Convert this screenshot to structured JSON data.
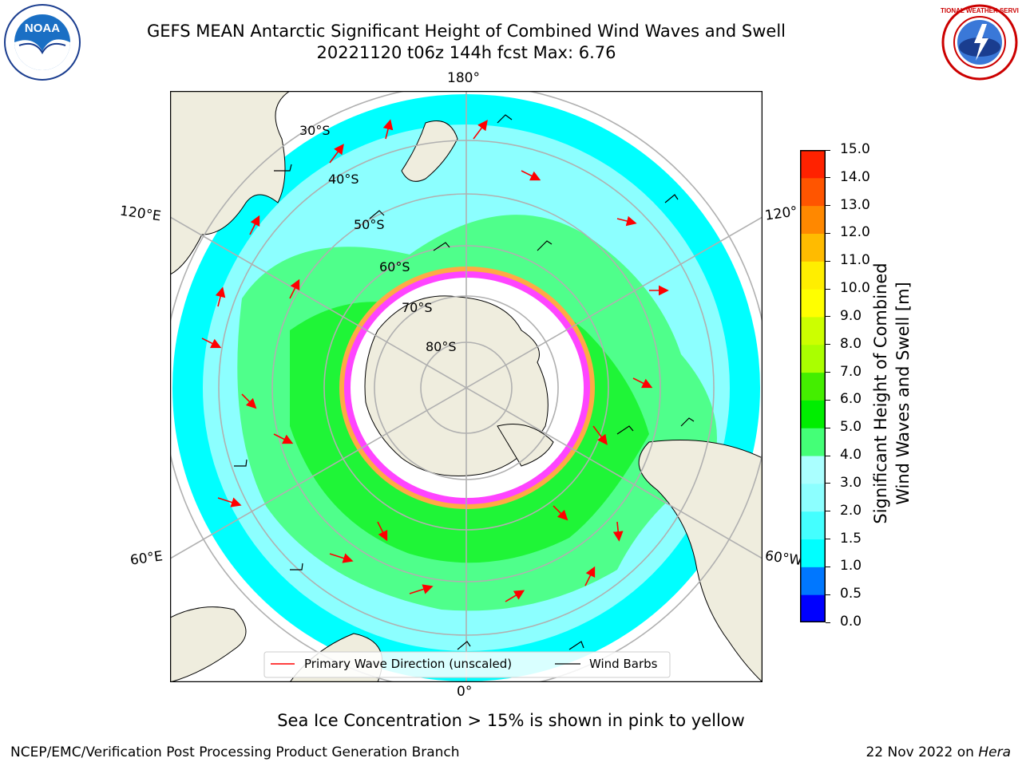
{
  "title_line1": "GEFS MEAN Antarctic Significant Height of Combined Wind Waves and Swell",
  "title_line2": "20221120 t06z 144h fcst   Max: 6.76",
  "map": {
    "longitude_labels": {
      "top": "180°",
      "bottom": "0°",
      "upper_left": "120°E",
      "lower_left": "60°E",
      "upper_right": "120°",
      "lower_right": "60°W"
    },
    "latitude_labels": [
      "30°S",
      "40°S",
      "50°S",
      "60°S",
      "70°S",
      "80°S"
    ],
    "legend": {
      "wave_label": "Primary Wave Direction (unscaled)",
      "barb_label": "Wind Barbs",
      "wave_color": "#ff0000",
      "barb_color": "#000000"
    },
    "colors": {
      "land": "#efedde",
      "ocean_low": "#00ffff",
      "ocean_mid": "#8cffff",
      "ocean_high": "#44ff77",
      "sea_ice": "#ff44ff",
      "ice_edge": "#ffaa44"
    }
  },
  "colorbar": {
    "label_line1": "Significant Height of Combined",
    "label_line2": "Wind Waves and Swell [m]",
    "ticks": [
      "0.0",
      "0.5",
      "1.0",
      "1.5",
      "2.0",
      "3.0",
      "4.0",
      "5.0",
      "6.0",
      "7.0",
      "8.0",
      "9.0",
      "10.0",
      "11.0",
      "12.0",
      "13.0",
      "14.0",
      "15.0"
    ],
    "colors": [
      "#0000ff",
      "#0077ff",
      "#00ffff",
      "#44ffff",
      "#8cffff",
      "#aaffff",
      "#44ff77",
      "#00ee00",
      "#44ee00",
      "#aaff00",
      "#ccff00",
      "#ffff00",
      "#ffee00",
      "#ffbb00",
      "#ff8800",
      "#ff5500",
      "#ff2200"
    ]
  },
  "caption": "Sea Ice Concentration > 15% is shown in pink to yellow",
  "footer_left": "NCEP/EMC/Verification Post Processing Product Generation Branch",
  "footer_right_prefix": "22 Nov 2022 on",
  "footer_right_host": "Hera",
  "logos": {
    "noaa_text": "NOAA",
    "nws_text": "NATIONAL WEATHER SERVICE"
  }
}
